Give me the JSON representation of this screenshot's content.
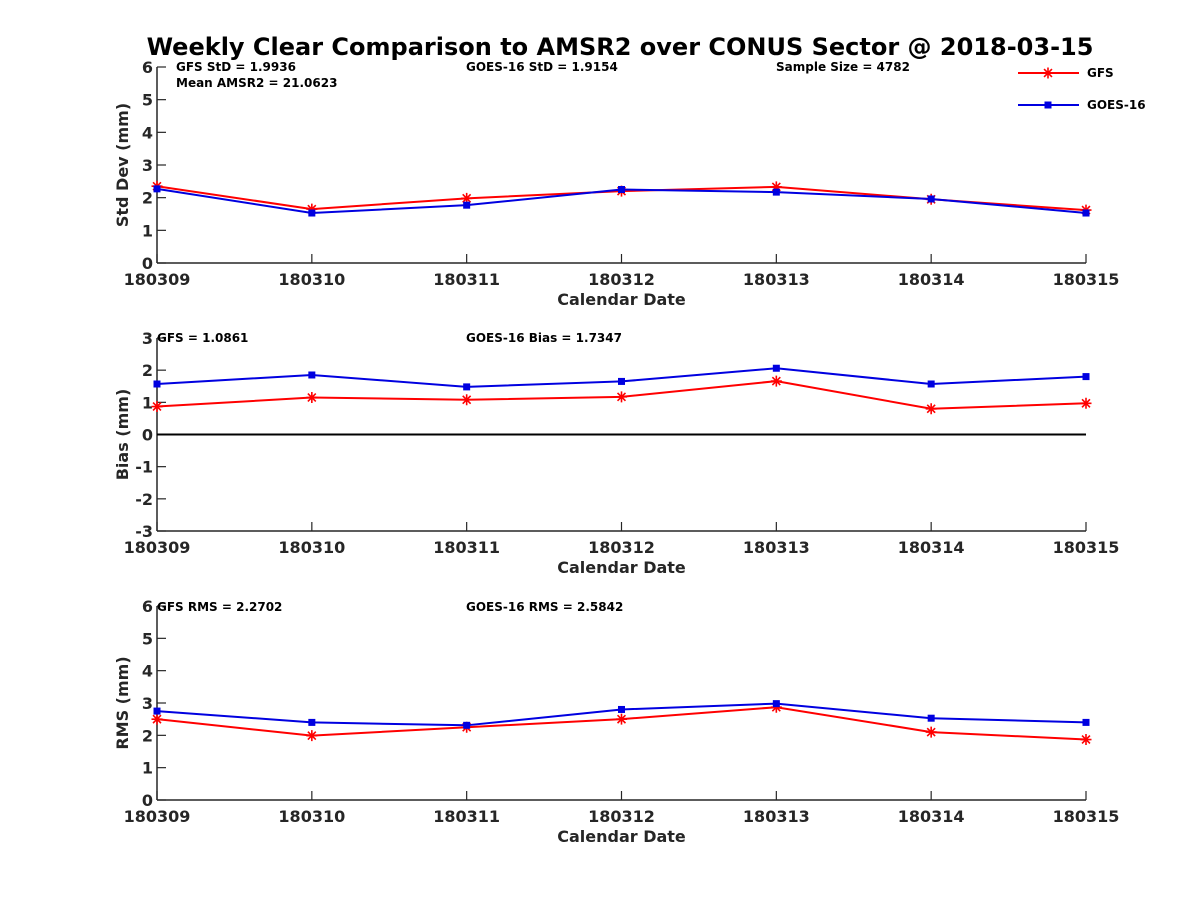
{
  "figure": {
    "title": "Weekly Clear Comparison to AMSR2 over CONUS Sector @ 2018-03-15",
    "legend": [
      {
        "name": "GFS",
        "color": "#ff0000",
        "marker": "asterisk"
      },
      {
        "name": "GOES-16",
        "color": "#0000e0",
        "marker": "square"
      }
    ]
  },
  "chart_data": [
    {
      "type": "line",
      "categories": [
        "180309",
        "180310",
        "180311",
        "180312",
        "180313",
        "180314",
        "180315"
      ],
      "xlabel": "Calendar Date",
      "ylabel": "Std Dev (mm)",
      "ylim": [
        0,
        6
      ],
      "yticks": [
        0,
        1,
        2,
        3,
        4,
        5,
        6
      ],
      "zero_line": false,
      "annotations": [
        "GFS StD = 1.9936",
        "Mean AMSR2 = 21.0623",
        "GOES-16 StD = 1.9154",
        "Sample Size = 4782"
      ],
      "series": [
        {
          "name": "GFS",
          "color": "#ff0000",
          "marker": "asterisk",
          "values": [
            2.35,
            1.65,
            1.98,
            2.2,
            2.33,
            1.95,
            1.62
          ]
        },
        {
          "name": "GOES-16",
          "color": "#0000e0",
          "marker": "square",
          "values": [
            2.27,
            1.53,
            1.77,
            2.25,
            2.17,
            1.96,
            1.53
          ]
        }
      ]
    },
    {
      "type": "line",
      "categories": [
        "180309",
        "180310",
        "180311",
        "180312",
        "180313",
        "180314",
        "180315"
      ],
      "xlabel": "Calendar Date",
      "ylabel": "Bias (mm)",
      "ylim": [
        -3,
        3
      ],
      "yticks": [
        -3,
        -2,
        -1,
        0,
        1,
        2,
        3
      ],
      "zero_line": true,
      "annotations": [
        "GFS = 1.0861",
        "GOES-16 Bias  = 1.7347"
      ],
      "series": [
        {
          "name": "GFS",
          "color": "#ff0000",
          "marker": "asterisk",
          "values": [
            0.87,
            1.15,
            1.08,
            1.17,
            1.66,
            0.8,
            0.97
          ]
        },
        {
          "name": "GOES-16",
          "color": "#0000e0",
          "marker": "square",
          "values": [
            1.57,
            1.85,
            1.48,
            1.65,
            2.06,
            1.57,
            1.8
          ]
        }
      ]
    },
    {
      "type": "line",
      "categories": [
        "180309",
        "180310",
        "180311",
        "180312",
        "180313",
        "180314",
        "180315"
      ],
      "xlabel": "Calendar Date",
      "ylabel": "RMS (mm)",
      "ylim": [
        0,
        6
      ],
      "yticks": [
        0,
        1,
        2,
        3,
        4,
        5,
        6
      ],
      "zero_line": false,
      "annotations": [
        "GFS RMS = 2.2702",
        "GOES-16 RMS = 2.5842"
      ],
      "series": [
        {
          "name": "GFS",
          "color": "#ff0000",
          "marker": "asterisk",
          "values": [
            2.5,
            1.99,
            2.25,
            2.5,
            2.87,
            2.1,
            1.87
          ]
        },
        {
          "name": "GOES-16",
          "color": "#0000e0",
          "marker": "square",
          "values": [
            2.75,
            2.4,
            2.31,
            2.8,
            2.98,
            2.53,
            2.4
          ]
        }
      ]
    }
  ]
}
